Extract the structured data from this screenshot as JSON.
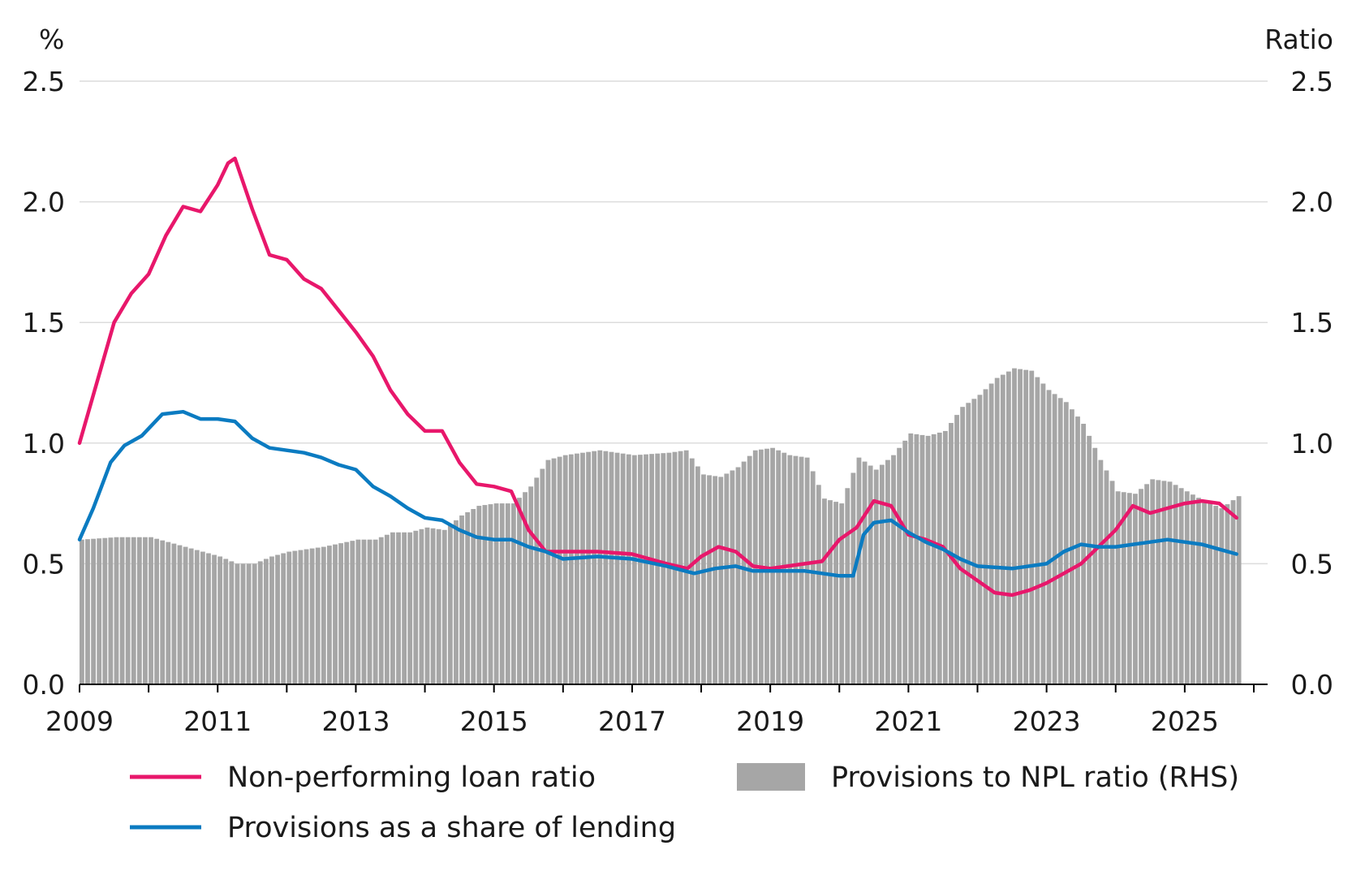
{
  "chart_data": {
    "type": "bar+line",
    "title": "",
    "left_axis": {
      "unit_label": "%",
      "ylim": [
        0,
        2.5
      ],
      "ticks": [
        "0.0",
        "0.5",
        "1.0",
        "1.5",
        "2.0",
        "2.5"
      ]
    },
    "right_axis": {
      "unit_label": "Ratio",
      "ylim": [
        0,
        2.5
      ],
      "ticks": [
        "0.0",
        "0.5",
        "1.0",
        "1.5",
        "2.0",
        "2.5"
      ]
    },
    "x_axis": {
      "xlim": [
        2009.0,
        2026.2
      ],
      "ticks": [
        "2009",
        "2011",
        "2013",
        "2015",
        "2017",
        "2019",
        "2021",
        "2023",
        "2025"
      ]
    },
    "grid": "horizontal",
    "legend_position": "bottom",
    "series": [
      {
        "name": "Non-performing loan ratio",
        "kind": "line",
        "axis": "left",
        "color": "#e8176b",
        "points": [
          [
            2009.0,
            1.0
          ],
          [
            2009.25,
            1.25
          ],
          [
            2009.5,
            1.5
          ],
          [
            2009.75,
            1.62
          ],
          [
            2010.0,
            1.7
          ],
          [
            2010.25,
            1.86
          ],
          [
            2010.5,
            1.98
          ],
          [
            2010.75,
            1.96
          ],
          [
            2011.0,
            2.07
          ],
          [
            2011.15,
            2.16
          ],
          [
            2011.25,
            2.18
          ],
          [
            2011.5,
            1.97
          ],
          [
            2011.75,
            1.78
          ],
          [
            2012.0,
            1.76
          ],
          [
            2012.25,
            1.68
          ],
          [
            2012.5,
            1.64
          ],
          [
            2012.75,
            1.55
          ],
          [
            2013.0,
            1.46
          ],
          [
            2013.25,
            1.36
          ],
          [
            2013.5,
            1.22
          ],
          [
            2013.75,
            1.12
          ],
          [
            2014.0,
            1.05
          ],
          [
            2014.25,
            1.05
          ],
          [
            2014.5,
            0.92
          ],
          [
            2014.75,
            0.83
          ],
          [
            2015.0,
            0.82
          ],
          [
            2015.25,
            0.8
          ],
          [
            2015.5,
            0.64
          ],
          [
            2015.75,
            0.55
          ],
          [
            2016.0,
            0.55
          ],
          [
            2016.5,
            0.55
          ],
          [
            2017.0,
            0.54
          ],
          [
            2017.5,
            0.5
          ],
          [
            2017.8,
            0.48
          ],
          [
            2018.0,
            0.53
          ],
          [
            2018.25,
            0.57
          ],
          [
            2018.5,
            0.55
          ],
          [
            2018.75,
            0.49
          ],
          [
            2019.0,
            0.48
          ],
          [
            2019.25,
            0.49
          ],
          [
            2019.5,
            0.5
          ],
          [
            2019.75,
            0.51
          ],
          [
            2020.0,
            0.6
          ],
          [
            2020.25,
            0.65
          ],
          [
            2020.5,
            0.76
          ],
          [
            2020.75,
            0.74
          ],
          [
            2021.0,
            0.62
          ],
          [
            2021.25,
            0.6
          ],
          [
            2021.5,
            0.57
          ],
          [
            2021.75,
            0.48
          ],
          [
            2022.0,
            0.43
          ],
          [
            2022.25,
            0.38
          ],
          [
            2022.5,
            0.37
          ],
          [
            2022.75,
            0.39
          ],
          [
            2023.0,
            0.42
          ],
          [
            2023.25,
            0.46
          ],
          [
            2023.5,
            0.5
          ],
          [
            2023.75,
            0.57
          ],
          [
            2024.0,
            0.64
          ],
          [
            2024.25,
            0.74
          ],
          [
            2024.5,
            0.71
          ],
          [
            2024.75,
            0.73
          ],
          [
            2025.0,
            0.75
          ],
          [
            2025.25,
            0.76
          ],
          [
            2025.5,
            0.75
          ],
          [
            2025.75,
            0.69
          ]
        ]
      },
      {
        "name": "Provisions as a share of lending",
        "kind": "line",
        "axis": "left",
        "color": "#0b7bc1",
        "points": [
          [
            2009.0,
            0.6
          ],
          [
            2009.2,
            0.73
          ],
          [
            2009.45,
            0.92
          ],
          [
            2009.65,
            0.99
          ],
          [
            2009.9,
            1.03
          ],
          [
            2010.2,
            1.12
          ],
          [
            2010.5,
            1.13
          ],
          [
            2010.75,
            1.1
          ],
          [
            2011.0,
            1.1
          ],
          [
            2011.25,
            1.09
          ],
          [
            2011.5,
            1.02
          ],
          [
            2011.75,
            0.98
          ],
          [
            2012.0,
            0.97
          ],
          [
            2012.25,
            0.96
          ],
          [
            2012.5,
            0.94
          ],
          [
            2012.75,
            0.91
          ],
          [
            2013.0,
            0.89
          ],
          [
            2013.25,
            0.82
          ],
          [
            2013.5,
            0.78
          ],
          [
            2013.75,
            0.73
          ],
          [
            2014.0,
            0.69
          ],
          [
            2014.25,
            0.68
          ],
          [
            2014.5,
            0.64
          ],
          [
            2014.75,
            0.61
          ],
          [
            2015.0,
            0.6
          ],
          [
            2015.25,
            0.6
          ],
          [
            2015.5,
            0.57
          ],
          [
            2015.75,
            0.55
          ],
          [
            2016.0,
            0.52
          ],
          [
            2016.5,
            0.53
          ],
          [
            2017.0,
            0.52
          ],
          [
            2017.5,
            0.49
          ],
          [
            2017.9,
            0.46
          ],
          [
            2018.2,
            0.48
          ],
          [
            2018.5,
            0.49
          ],
          [
            2018.75,
            0.47
          ],
          [
            2019.0,
            0.47
          ],
          [
            2019.5,
            0.47
          ],
          [
            2019.75,
            0.46
          ],
          [
            2020.0,
            0.45
          ],
          [
            2020.2,
            0.45
          ],
          [
            2020.35,
            0.62
          ],
          [
            2020.5,
            0.67
          ],
          [
            2020.75,
            0.68
          ],
          [
            2021.0,
            0.63
          ],
          [
            2021.25,
            0.59
          ],
          [
            2021.5,
            0.56
          ],
          [
            2021.75,
            0.52
          ],
          [
            2022.0,
            0.49
          ],
          [
            2022.5,
            0.48
          ],
          [
            2023.0,
            0.5
          ],
          [
            2023.25,
            0.55
          ],
          [
            2023.5,
            0.58
          ],
          [
            2023.75,
            0.57
          ],
          [
            2024.0,
            0.57
          ],
          [
            2024.5,
            0.59
          ],
          [
            2024.75,
            0.6
          ],
          [
            2025.0,
            0.59
          ],
          [
            2025.25,
            0.58
          ],
          [
            2025.5,
            0.56
          ],
          [
            2025.75,
            0.54
          ]
        ]
      },
      {
        "name": "Provisions to NPL ratio (RHS)",
        "kind": "bar",
        "axis": "right",
        "color": "#a6a6a6",
        "points": [
          [
            2009.0,
            0.6
          ],
          [
            2009.5,
            0.61
          ],
          [
            2010.0,
            0.61
          ],
          [
            2010.5,
            0.57
          ],
          [
            2011.0,
            0.53
          ],
          [
            2011.25,
            0.5
          ],
          [
            2011.5,
            0.5
          ],
          [
            2011.75,
            0.53
          ],
          [
            2012.0,
            0.55
          ],
          [
            2012.5,
            0.57
          ],
          [
            2013.0,
            0.6
          ],
          [
            2013.25,
            0.6
          ],
          [
            2013.5,
            0.63
          ],
          [
            2013.75,
            0.63
          ],
          [
            2014.0,
            0.65
          ],
          [
            2014.25,
            0.64
          ],
          [
            2014.5,
            0.7
          ],
          [
            2014.75,
            0.74
          ],
          [
            2015.0,
            0.75
          ],
          [
            2015.25,
            0.75
          ],
          [
            2015.5,
            0.82
          ],
          [
            2015.75,
            0.93
          ],
          [
            2016.0,
            0.95
          ],
          [
            2016.5,
            0.97
          ],
          [
            2017.0,
            0.95
          ],
          [
            2017.5,
            0.96
          ],
          [
            2017.75,
            0.97
          ],
          [
            2018.0,
            0.87
          ],
          [
            2018.25,
            0.86
          ],
          [
            2018.5,
            0.9
          ],
          [
            2018.75,
            0.97
          ],
          [
            2019.0,
            0.98
          ],
          [
            2019.25,
            0.95
          ],
          [
            2019.5,
            0.94
          ],
          [
            2019.75,
            0.77
          ],
          [
            2020.0,
            0.75
          ],
          [
            2020.25,
            0.94
          ],
          [
            2020.5,
            0.89
          ],
          [
            2020.75,
            0.95
          ],
          [
            2021.0,
            1.04
          ],
          [
            2021.25,
            1.03
          ],
          [
            2021.5,
            1.05
          ],
          [
            2021.75,
            1.15
          ],
          [
            2022.0,
            1.2
          ],
          [
            2022.25,
            1.27
          ],
          [
            2022.5,
            1.31
          ],
          [
            2022.75,
            1.3
          ],
          [
            2023.0,
            1.22
          ],
          [
            2023.25,
            1.17
          ],
          [
            2023.5,
            1.08
          ],
          [
            2023.75,
            0.93
          ],
          [
            2024.0,
            0.8
          ],
          [
            2024.25,
            0.79
          ],
          [
            2024.5,
            0.85
          ],
          [
            2024.75,
            0.84
          ],
          [
            2025.0,
            0.8
          ],
          [
            2025.25,
            0.76
          ],
          [
            2025.5,
            0.73
          ],
          [
            2025.75,
            0.78
          ]
        ]
      }
    ]
  }
}
